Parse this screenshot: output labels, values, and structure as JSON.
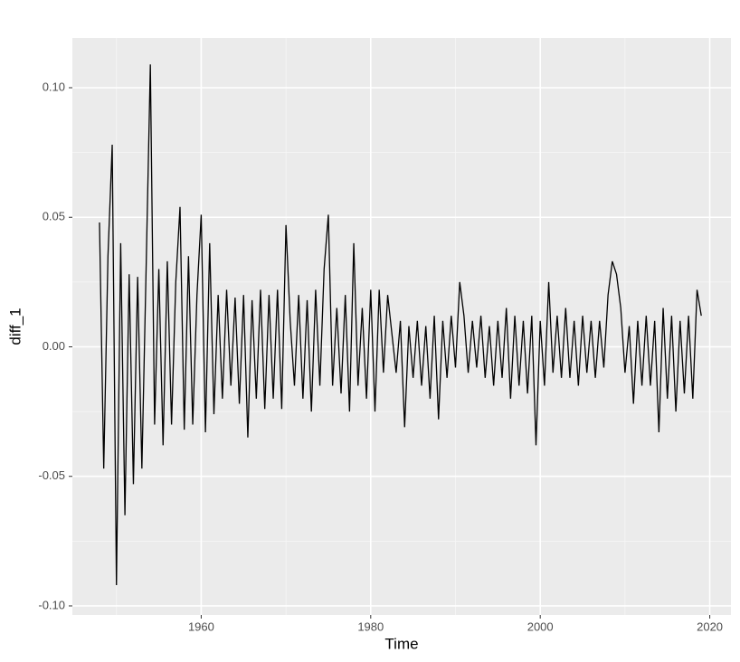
{
  "chart_data": {
    "type": "line",
    "x_label": "Time",
    "y_label": "diff_1",
    "xlim": [
      1944.8,
      2022.5
    ],
    "ylim": [
      -0.1035,
      0.1192
    ],
    "xticks": [
      1960,
      1980,
      2000,
      2020
    ],
    "yticks": [
      {
        "value": -0.1,
        "label": "-0.10"
      },
      {
        "value": -0.05,
        "label": "-0.05"
      },
      {
        "value": 0,
        "label": "0.00"
      },
      {
        "value": 0.05,
        "label": "0.05"
      },
      {
        "value": 0.1,
        "label": "0.10"
      }
    ],
    "grid": true,
    "color": "#000000",
    "x": [
      1948.0,
      1948.5,
      1949.0,
      1949.5,
      1950.0,
      1950.5,
      1951.0,
      1951.5,
      1952.0,
      1952.5,
      1953.0,
      1953.5,
      1954.0,
      1954.5,
      1955.0,
      1955.5,
      1956.0,
      1956.5,
      1957.0,
      1957.5,
      1958.0,
      1958.5,
      1959.0,
      1959.5,
      1960.0,
      1960.5,
      1961.0,
      1961.5,
      1962.0,
      1962.5,
      1963.0,
      1963.5,
      1964.0,
      1964.5,
      1965.0,
      1965.5,
      1966.0,
      1966.5,
      1967.0,
      1967.5,
      1968.0,
      1968.5,
      1969.0,
      1969.5,
      1970.0,
      1970.5,
      1971.0,
      1971.5,
      1972.0,
      1972.5,
      1973.0,
      1973.5,
      1974.0,
      1974.5,
      1975.0,
      1975.5,
      1976.0,
      1976.5,
      1977.0,
      1977.5,
      1978.0,
      1978.5,
      1979.0,
      1979.5,
      1980.0,
      1980.5,
      1981.0,
      1981.5,
      1982.0,
      1982.5,
      1983.0,
      1983.5,
      1984.0,
      1984.5,
      1985.0,
      1985.5,
      1986.0,
      1986.5,
      1987.0,
      1987.5,
      1988.0,
      1988.5,
      1989.0,
      1989.5,
      1990.0,
      1990.5,
      1991.0,
      1991.5,
      1992.0,
      1992.5,
      1993.0,
      1993.5,
      1994.0,
      1994.5,
      1995.0,
      1995.5,
      1996.0,
      1996.5,
      1997.0,
      1997.5,
      1998.0,
      1998.5,
      1999.0,
      1999.5,
      2000.0,
      2000.5,
      2001.0,
      2001.5,
      2002.0,
      2002.5,
      2003.0,
      2003.5,
      2004.0,
      2004.5,
      2005.0,
      2005.5,
      2006.0,
      2006.5,
      2007.0,
      2007.5,
      2008.0,
      2008.5,
      2009.0,
      2009.5,
      2010.0,
      2010.5,
      2011.0,
      2011.5,
      2012.0,
      2012.5,
      2013.0,
      2013.5,
      2014.0,
      2014.5,
      2015.0,
      2015.5,
      2016.0,
      2016.5,
      2017.0,
      2017.5,
      2018.0,
      2018.5,
      2019.0
    ],
    "values": [
      0.048,
      -0.047,
      0.035,
      0.078,
      -0.092,
      0.04,
      -0.065,
      0.028,
      -0.053,
      0.027,
      -0.047,
      0.03,
      0.109,
      -0.03,
      0.03,
      -0.038,
      0.033,
      -0.03,
      0.025,
      0.054,
      -0.032,
      0.035,
      -0.03,
      0.02,
      0.051,
      -0.033,
      0.04,
      -0.026,
      0.02,
      -0.02,
      0.022,
      -0.015,
      0.019,
      -0.022,
      0.02,
      -0.035,
      0.018,
      -0.02,
      0.022,
      -0.024,
      0.02,
      -0.02,
      0.022,
      -0.024,
      0.047,
      0.01,
      -0.015,
      0.02,
      -0.02,
      0.018,
      -0.025,
      0.022,
      -0.015,
      0.03,
      0.051,
      -0.015,
      0.015,
      -0.018,
      0.02,
      -0.025,
      0.04,
      -0.015,
      0.015,
      -0.02,
      0.022,
      -0.025,
      0.022,
      -0.01,
      0.02,
      0.005,
      -0.01,
      0.01,
      -0.031,
      0.008,
      -0.012,
      0.01,
      -0.015,
      0.008,
      -0.02,
      0.012,
      -0.028,
      0.01,
      -0.012,
      0.012,
      -0.008,
      0.025,
      0.012,
      -0.01,
      0.01,
      -0.008,
      0.012,
      -0.012,
      0.008,
      -0.015,
      0.01,
      -0.012,
      0.015,
      -0.02,
      0.012,
      -0.015,
      0.01,
      -0.018,
      0.012,
      -0.038,
      0.01,
      -0.015,
      0.025,
      -0.01,
      0.012,
      -0.012,
      0.015,
      -0.012,
      0.01,
      -0.015,
      0.012,
      -0.01,
      0.01,
      -0.012,
      0.01,
      -0.008,
      0.02,
      0.033,
      0.028,
      0.015,
      -0.01,
      0.008,
      -0.022,
      0.01,
      -0.015,
      0.012,
      -0.015,
      0.01,
      -0.033,
      0.015,
      -0.02,
      0.012,
      -0.025,
      0.01,
      -0.018,
      0.012,
      -0.02,
      0.022,
      0.012
    ]
  }
}
